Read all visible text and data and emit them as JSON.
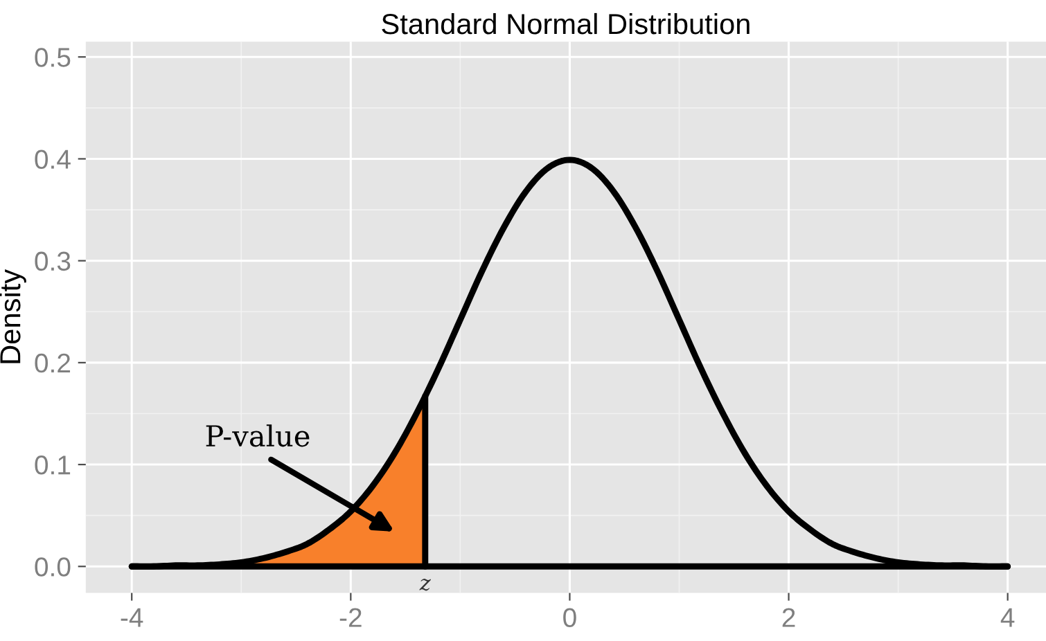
{
  "chart_data": {
    "type": "line",
    "title": "Standard Normal Distribution",
    "ylabel": "Density",
    "xlim": [
      -4.42,
      4.35
    ],
    "ylim": [
      -0.026,
      0.515
    ],
    "xticks": [
      -4,
      -2,
      0,
      2,
      4
    ],
    "yticks": [
      {
        "value": 0,
        "label": "0.0"
      },
      0.1,
      0.2,
      0.3,
      0.4,
      0.5
    ],
    "grid": true,
    "legend": false,
    "series": [
      {
        "type": "area",
        "color": "#f8802b",
        "x": [
          -4,
          -3.8,
          -3.6,
          -3.4,
          -3.2,
          -3,
          -2.8,
          -2.6,
          -2.4,
          -2.2,
          -2,
          -1.8,
          -1.6,
          -1.4,
          -1.32
        ],
        "values": [
          0.0,
          0.0,
          0.001,
          0.001,
          0.002,
          0.004,
          0.008,
          0.014,
          0.022,
          0.036,
          0.054,
          0.079,
          0.111,
          0.15,
          0.167
        ]
      },
      {
        "color": "#000000",
        "x": [
          -4,
          -3.8,
          -3.6,
          -3.4,
          -3.2,
          -3,
          -2.8,
          -2.6,
          -2.4,
          -2.2,
          -2,
          -1.8,
          -1.6,
          -1.4,
          -1.2,
          -1,
          -0.8,
          -0.6,
          -0.4,
          -0.2,
          0,
          0.2,
          0.4,
          0.6,
          0.8,
          1,
          1.2,
          1.4,
          1.6,
          1.8,
          2,
          2.2,
          2.4,
          2.6,
          2.8,
          3,
          3.2,
          3.4,
          3.6,
          3.8,
          4
        ],
        "values": [
          0.0,
          0.0,
          0.001,
          0.001,
          0.002,
          0.004,
          0.008,
          0.014,
          0.022,
          0.036,
          0.054,
          0.079,
          0.111,
          0.15,
          0.194,
          0.242,
          0.29,
          0.333,
          0.368,
          0.391,
          0.399,
          0.391,
          0.368,
          0.333,
          0.29,
          0.242,
          0.194,
          0.15,
          0.111,
          0.079,
          0.054,
          0.036,
          0.022,
          0.014,
          0.008,
          0.004,
          0.002,
          0.001,
          0.001,
          0.0,
          0.0
        ]
      },
      {
        "color": "#000000",
        "x": [
          -4,
          4
        ],
        "values": [
          0,
          0
        ]
      },
      {
        "color": "#000000",
        "x": [
          -1.32,
          -1.32
        ],
        "values": [
          0,
          0.167
        ]
      }
    ],
    "annotations": [
      "P-value",
      {
        "text": "z",
        "x": -1.32,
        "y": 0
      }
    ]
  }
}
